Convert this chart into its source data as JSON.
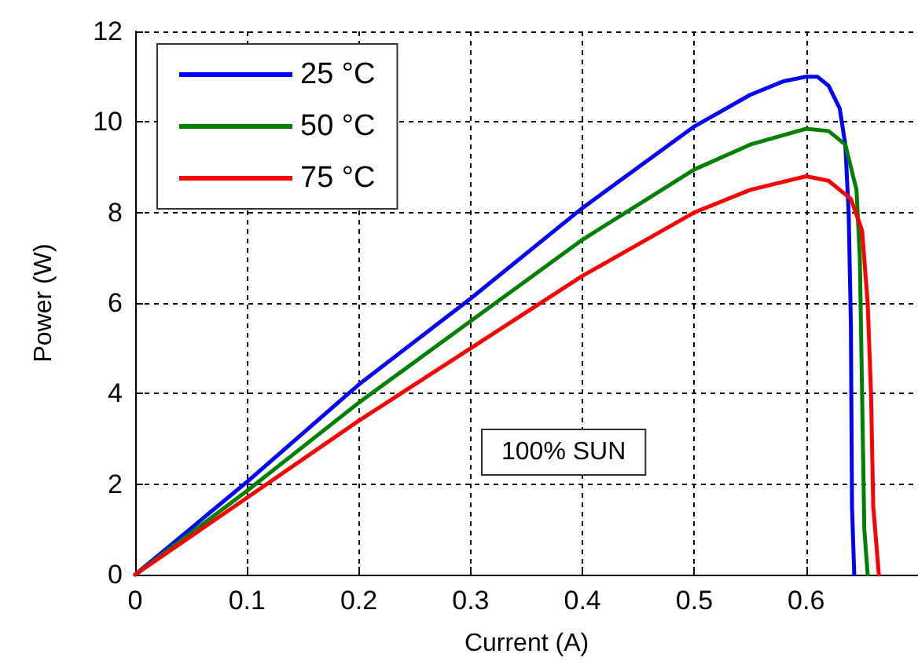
{
  "chart_data": {
    "type": "line",
    "xlabel": "Current (A)",
    "ylabel": "Power (W)",
    "xlim": [
      0,
      0.7
    ],
    "xticks": [
      0,
      0.1,
      0.2,
      0.3,
      0.4,
      0.5,
      0.6
    ],
    "ylim": [
      0,
      12
    ],
    "yticks": [
      0,
      2,
      4,
      6,
      8,
      10,
      12
    ],
    "grid": true,
    "legend": "top left",
    "line_style": "solid",
    "annotations": [
      "100% SUN"
    ],
    "series": [
      {
        "name": "25 °C",
        "color": "#0000ff",
        "x": [
          0,
          0.1,
          0.2,
          0.3,
          0.4,
          0.5,
          0.55,
          0.58,
          0.6,
          0.61,
          0.62,
          0.63,
          0.635,
          0.638,
          0.64,
          0.641,
          0.643
        ],
        "values": [
          0,
          2.05,
          4.2,
          6.1,
          8.1,
          9.9,
          10.6,
          10.9,
          11,
          11,
          10.8,
          10.3,
          9.5,
          8,
          5.5,
          1.5,
          0
        ]
      },
      {
        "name": "50 °C",
        "color": "#008000",
        "x": [
          0,
          0.1,
          0.2,
          0.3,
          0.4,
          0.5,
          0.55,
          0.6,
          0.62,
          0.635,
          0.645,
          0.648,
          0.65,
          0.652,
          0.655
        ],
        "values": [
          0,
          1.85,
          3.8,
          5.6,
          7.4,
          8.95,
          9.5,
          9.85,
          9.8,
          9.5,
          8.5,
          7,
          4,
          1,
          0
        ]
      },
      {
        "name": "75 °C",
        "color": "#ff0000",
        "x": [
          0,
          0.1,
          0.2,
          0.3,
          0.4,
          0.5,
          0.55,
          0.6,
          0.62,
          0.64,
          0.65,
          0.655,
          0.658,
          0.66,
          0.665
        ],
        "values": [
          0,
          1.7,
          3.4,
          5,
          6.6,
          8,
          8.5,
          8.8,
          8.7,
          8.3,
          7.6,
          6,
          4,
          1.5,
          0
        ]
      }
    ]
  }
}
